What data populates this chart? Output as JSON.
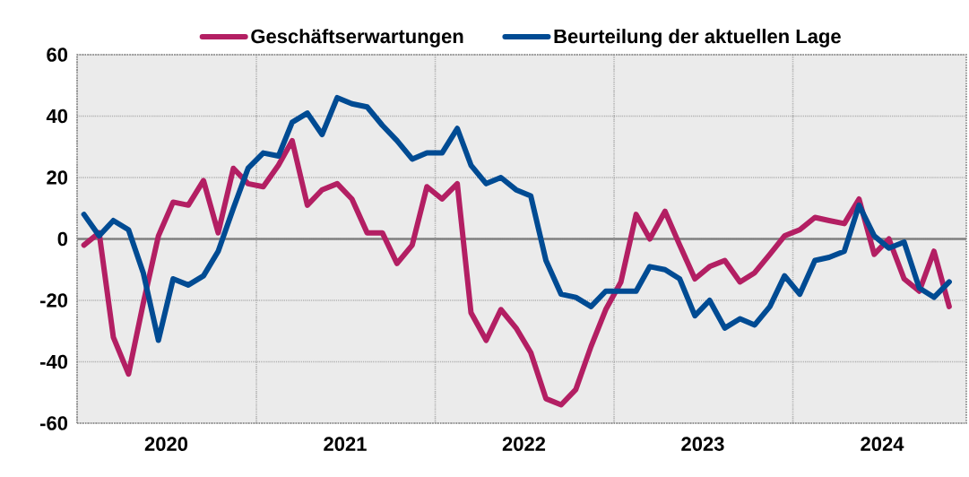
{
  "chart_data": {
    "type": "line",
    "x": [
      "2020-01-15",
      "2020-02-15",
      "2020-03-15",
      "2020-04-15",
      "2020-05-15",
      "2020-06-15",
      "2020-07-15",
      "2020-08-15",
      "2020-09-15",
      "2020-10-15",
      "2020-11-15",
      "2020-12-15",
      "2021-01-15",
      "2021-02-15",
      "2021-03-15",
      "2021-04-15",
      "2021-05-15",
      "2021-06-15",
      "2021-07-15",
      "2021-08-15",
      "2021-09-15",
      "2021-10-15",
      "2021-11-15",
      "2021-12-15",
      "2022-01-15",
      "2022-02-15",
      "2022-03-15",
      "2022-04-15",
      "2022-05-15",
      "2022-06-15",
      "2022-07-15",
      "2022-08-15",
      "2022-09-15",
      "2022-10-15",
      "2022-11-15",
      "2022-12-15",
      "2023-01-15",
      "2023-02-15",
      "2023-03-15",
      "2023-04-15",
      "2023-05-15",
      "2023-06-15",
      "2023-07-15",
      "2023-08-15",
      "2023-09-15",
      "2023-10-15",
      "2023-11-15",
      "2023-12-15",
      "2024-01-15",
      "2024-02-15",
      "2024-03-15",
      "2024-04-15",
      "2024-05-15",
      "2024-06-15",
      "2024-07-15",
      "2024-08-15",
      "2024-09-15",
      "2024-10-15",
      "2024-11-15"
    ],
    "series": [
      {
        "name": "Geschäftserwartungen",
        "color": "#b31f63",
        "values": [
          -2,
          2,
          -32,
          -44,
          -21,
          1,
          12,
          11,
          19,
          2,
          23,
          18,
          17,
          24,
          32,
          11,
          16,
          18,
          13,
          2,
          2,
          -8,
          -2,
          17,
          13,
          18,
          -24,
          -33,
          -23,
          -29,
          -37,
          -52,
          -54,
          -49,
          -35,
          -23,
          -14,
          8,
          0,
          9,
          -2,
          -13,
          -9,
          -7,
          -14,
          -11,
          -5,
          1,
          3,
          7,
          6,
          5,
          13,
          -5,
          0,
          -13,
          -17,
          -4,
          -22
        ]
      },
      {
        "name": "Beurteilung der aktuellen Lage",
        "color": "#004b93",
        "values": [
          8,
          1,
          6,
          3,
          -11,
          -33,
          -13,
          -15,
          -12,
          -4,
          10,
          23,
          28,
          27,
          38,
          41,
          34,
          46,
          44,
          43,
          37,
          32,
          26,
          28,
          28,
          36,
          24,
          18,
          20,
          16,
          14,
          -7,
          -18,
          -19,
          -22,
          -17,
          -17,
          -17,
          -9,
          -10,
          -13,
          -25,
          -20,
          -29,
          -26,
          -28,
          -22,
          -12,
          -18,
          -7,
          -6,
          -4,
          11,
          1,
          -3,
          -1,
          -16,
          -19,
          -14
        ]
      }
    ],
    "xlim": [
      "2020-01-01",
      "2024-12-20"
    ],
    "xticks": [
      {
        "value": "2020-01-01",
        "label": null
      },
      {
        "value": "2020-07-01",
        "label": "2020"
      },
      {
        "value": "2021-01-01",
        "label": null
      },
      {
        "value": "2021-07-01",
        "label": "2021"
      },
      {
        "value": "2022-01-01",
        "label": null
      },
      {
        "value": "2022-07-01",
        "label": "2022"
      },
      {
        "value": "2023-01-01",
        "label": null
      },
      {
        "value": "2023-07-01",
        "label": "2023"
      },
      {
        "value": "2024-01-01",
        "label": null
      },
      {
        "value": "2024-07-01",
        "label": "2024"
      }
    ],
    "ylim": [
      -60,
      60
    ],
    "yticks": [
      -60,
      -40,
      -20,
      0,
      20,
      40,
      60
    ],
    "ref_lines": [
      {
        "axis": "y",
        "value": 0,
        "color": "#808080"
      }
    ],
    "grid": true,
    "legend": "top",
    "marker": "none",
    "line_style": "solid"
  }
}
